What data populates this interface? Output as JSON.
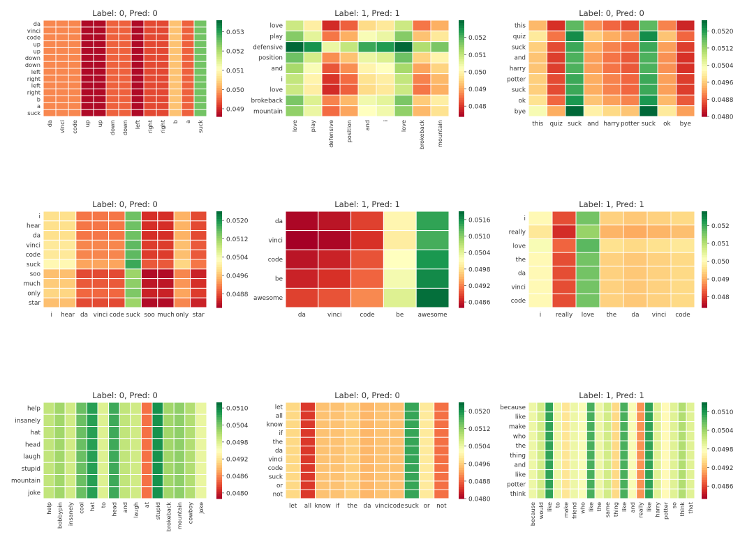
{
  "chart_data": [
    {
      "type": "heatmap",
      "title": "Label: 0, Pred: 0",
      "rows": [
        "da",
        "vinci",
        "code",
        "up",
        "up",
        "down",
        "down",
        "left",
        "right",
        "left",
        "right",
        "b",
        "a",
        "suck"
      ],
      "cols": [
        "da",
        "vinci",
        "code",
        "up",
        "up",
        "down",
        "down",
        "left",
        "right",
        "right",
        "b",
        "a",
        "suck"
      ],
      "col_values": [
        0.0498,
        0.0498,
        0.0498,
        0.0487,
        0.0487,
        0.0495,
        0.0495,
        0.0487,
        0.0493,
        0.0493,
        0.0503,
        0.0495,
        0.0525
      ],
      "colorbar": {
        "min": 0.0486,
        "max": 0.0536,
        "ticks": [
          "0.049",
          "0.050",
          "0.051",
          "0.052",
          "0.053"
        ]
      }
    },
    {
      "type": "heatmap",
      "title": "Label: 1, Pred: 1",
      "rows": [
        "love",
        "play",
        "defensive",
        "position",
        "and",
        "i",
        "love",
        "brokeback",
        "mountain"
      ],
      "cols": [
        "love",
        "play",
        "defensive",
        "position",
        "and",
        "i",
        "love",
        "brokeback",
        "mountain"
      ],
      "row_values": [
        0.0501,
        0.0508,
        0.0527,
        0.051,
        0.0505,
        0.0502,
        0.0501,
        0.0509,
        0.0507
      ],
      "col_values": [
        0.051,
        0.05,
        0.048,
        0.0485,
        0.0497,
        0.0499,
        0.051,
        0.0487,
        0.0492
      ],
      "colorbar": {
        "min": 0.0474,
        "max": 0.053,
        "ticks": [
          "0.048",
          "0.049",
          "0.050",
          "0.051",
          "0.052"
        ]
      }
    },
    {
      "type": "heatmap",
      "title": "Label: 0, Pred: 0",
      "rows": [
        "this",
        "quiz",
        "suck",
        "and",
        "harry",
        "potter",
        "suck",
        "ok",
        "bye"
      ],
      "cols": [
        "this",
        "quiz",
        "suck",
        "and",
        "harry",
        "potter",
        "suck",
        "ok",
        "bye"
      ],
      "row_values": [
        0.0501,
        0.0506,
        0.0503,
        0.0502,
        0.0502,
        0.0503,
        0.0503,
        0.0505,
        0.051
      ],
      "col_values": [
        0.0496,
        0.0486,
        0.0518,
        0.0493,
        0.049,
        0.0488,
        0.0518,
        0.0492,
        0.0485
      ],
      "colorbar": {
        "min": 0.048,
        "max": 0.0525,
        "ticks": [
          "0.0480",
          "0.0488",
          "0.0496",
          "0.0504",
          "0.0512",
          "0.0520"
        ]
      }
    },
    {
      "type": "heatmap",
      "title": "Label: 0, Pred: 0",
      "rows": [
        "i",
        "hear",
        "da",
        "vinci",
        "code",
        "suck",
        "soo",
        "much",
        "only",
        "star"
      ],
      "cols": [
        "i",
        "hear",
        "da",
        "vinci",
        "code",
        "suck",
        "soo",
        "much",
        "only",
        "star"
      ],
      "row_values": [
        0.05,
        0.05,
        0.05,
        0.0501,
        0.0501,
        0.0503,
        0.0497,
        0.0498,
        0.0499,
        0.0497
      ],
      "col_values": [
        0.0502,
        0.0502,
        0.0494,
        0.0494,
        0.0494,
        0.0518,
        0.0489,
        0.0489,
        0.0498,
        0.0491
      ],
      "colorbar": {
        "min": 0.0482,
        "max": 0.0524,
        "ticks": [
          "0.0488",
          "0.0496",
          "0.0504",
          "0.0512",
          "0.0520"
        ]
      }
    },
    {
      "type": "heatmap",
      "title": "Label: 1, Pred: 1",
      "rows": [
        "da",
        "vinci",
        "code",
        "be",
        "awesome"
      ],
      "cols": [
        "da",
        "vinci",
        "code",
        "be",
        "awesome"
      ],
      "row_values": [
        0.0499,
        0.0498,
        0.05,
        0.0501,
        0.0503
      ],
      "col_values": [
        0.0487,
        0.0488,
        0.0491,
        0.0503,
        0.0517
      ],
      "colorbar": {
        "min": 0.0484,
        "max": 0.0519,
        "ticks": [
          "0.0486",
          "0.0492",
          "0.0498",
          "0.0504",
          "0.0510",
          "0.0516"
        ]
      }
    },
    {
      "type": "heatmap",
      "title": "Label: 1, Pred: 1",
      "rows": [
        "i",
        "really",
        "love",
        "the",
        "da",
        "vinci",
        "code"
      ],
      "cols": [
        "i",
        "really",
        "love",
        "the",
        "da",
        "vinci",
        "code"
      ],
      "row_values": [
        0.05,
        0.0497,
        0.0502,
        0.05,
        0.05,
        0.05,
        0.05
      ],
      "col_values": [
        0.0501,
        0.0483,
        0.0517,
        0.0495,
        0.0494,
        0.0495,
        0.0496
      ],
      "colorbar": {
        "min": 0.0474,
        "max": 0.0528,
        "ticks": [
          "0.048",
          "0.049",
          "0.050",
          "0.051",
          "0.052"
        ]
      }
    },
    {
      "type": "heatmap",
      "title": "Label: 0, Pred: 0",
      "rows": [
        "help",
        "insanely",
        "hat",
        "head",
        "laugh",
        "stupid",
        "mountain",
        "joke"
      ],
      "cols": [
        "help",
        "bobbypin",
        "insanely",
        "cool",
        "hat",
        "to",
        "head",
        "and",
        "laugh",
        "at",
        "stupid",
        "brokeback",
        "mountain",
        "cowboy",
        "joke"
      ],
      "col_values": [
        0.05,
        0.0502,
        0.0499,
        0.0505,
        0.0508,
        0.0498,
        0.0507,
        0.05,
        0.0499,
        0.0485,
        0.0509,
        0.0502,
        0.0503,
        0.0501,
        0.0497
      ],
      "colorbar": {
        "min": 0.0478,
        "max": 0.0512,
        "ticks": [
          "0.0480",
          "0.0486",
          "0.0492",
          "0.0498",
          "0.0504",
          "0.0510"
        ]
      }
    },
    {
      "type": "heatmap",
      "title": "Label: 0, Pred: 0",
      "rows": [
        "let",
        "all",
        "know",
        "if",
        "the",
        "da",
        "vinci",
        "code",
        "suck",
        "or",
        "not"
      ],
      "cols": [
        "let",
        "all",
        "know",
        "if",
        "the",
        "da",
        "vinci",
        "code",
        "suck",
        "or",
        "not"
      ],
      "col_values": [
        0.0497,
        0.0485,
        0.0495,
        0.0495,
        0.0496,
        0.0494,
        0.0495,
        0.0495,
        0.0518,
        0.0499,
        0.0489
      ],
      "colorbar": {
        "min": 0.048,
        "max": 0.0524,
        "ticks": [
          "0.0480",
          "0.0488",
          "0.0496",
          "0.0504",
          "0.0512",
          "0.0520"
        ]
      }
    },
    {
      "type": "heatmap",
      "title": "Label: 1, Pred: 1",
      "rows": [
        "because",
        "like",
        "make",
        "who",
        "the",
        "thing",
        "and",
        "like",
        "potter",
        "think"
      ],
      "cols": [
        "because",
        "would",
        "like",
        "to",
        "make",
        "friend",
        "who",
        "like",
        "the",
        "same",
        "thing",
        "like",
        "and",
        "really",
        "like",
        "harry",
        "potter",
        "so",
        "think",
        "that"
      ],
      "col_values": [
        0.0499,
        0.0501,
        0.0509,
        0.0499,
        0.0495,
        0.0499,
        0.0498,
        0.0508,
        0.0499,
        0.0501,
        0.0494,
        0.0508,
        0.0498,
        0.049,
        0.0509,
        0.05,
        0.0497,
        0.05,
        0.0503,
        0.05
      ],
      "colorbar": {
        "min": 0.0482,
        "max": 0.0513,
        "ticks": [
          "0.0486",
          "0.0492",
          "0.0498",
          "0.0504",
          "0.0510"
        ]
      }
    }
  ]
}
